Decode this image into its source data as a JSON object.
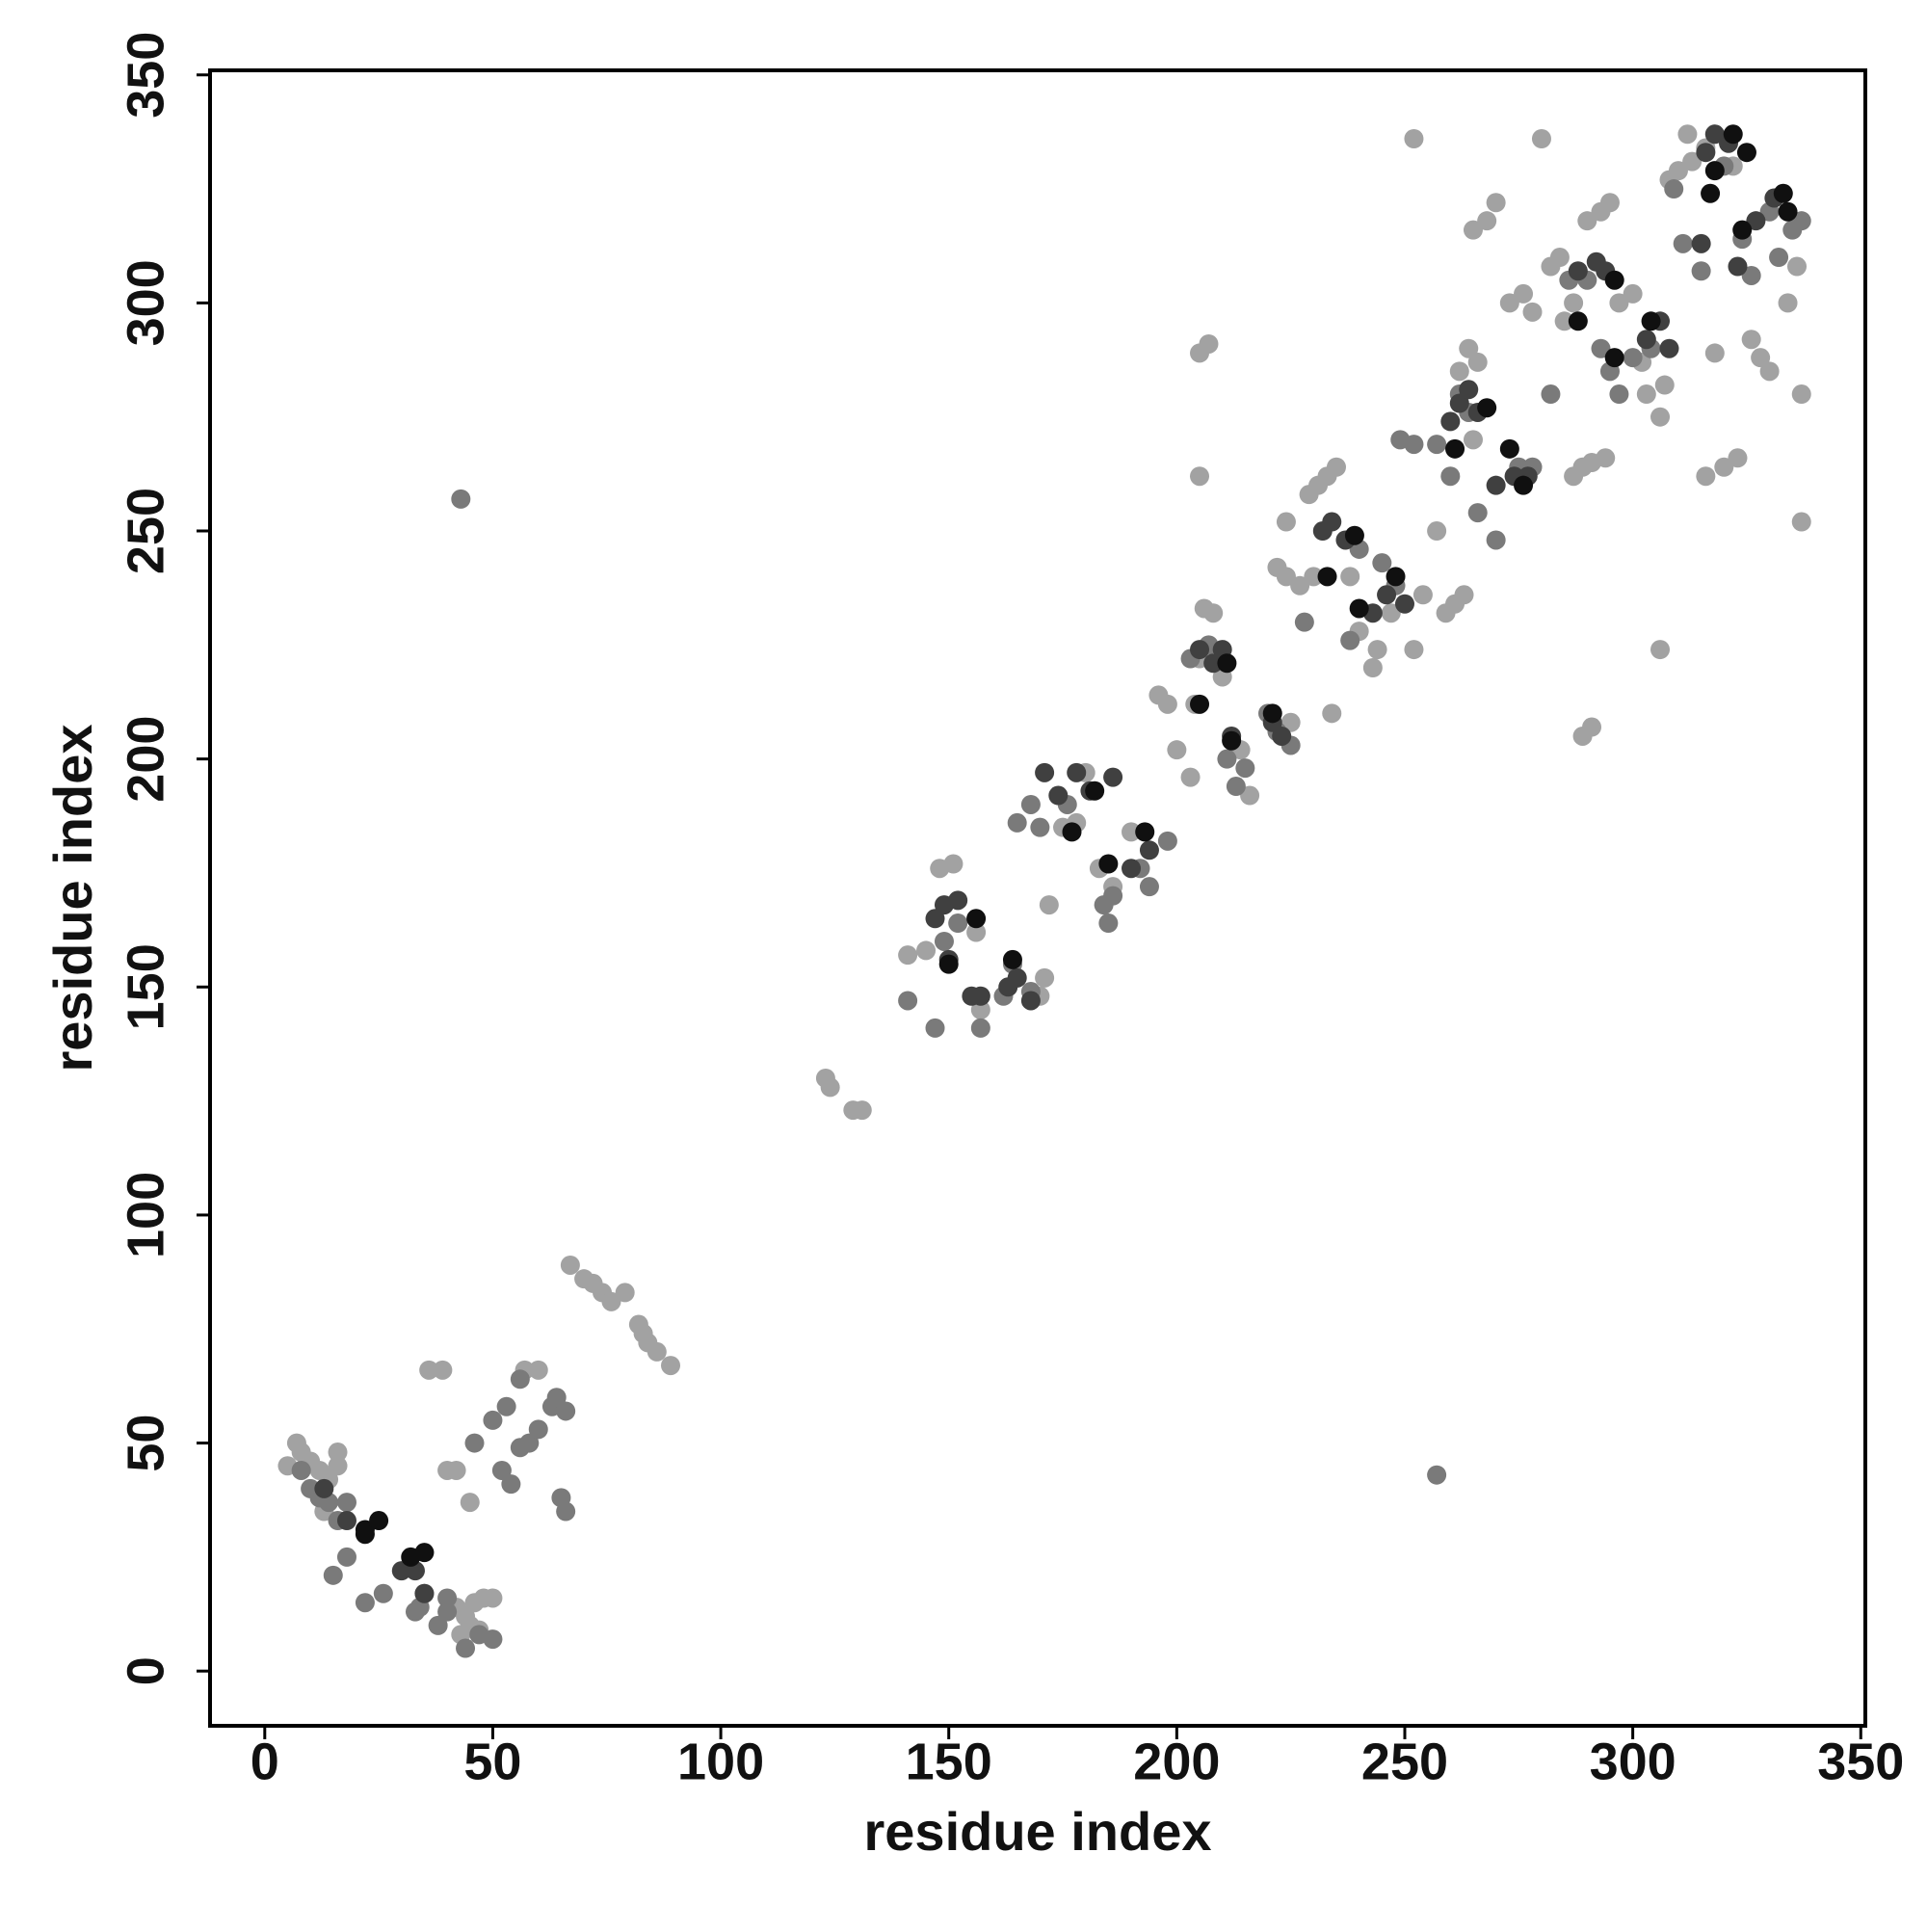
{
  "chart_data": {
    "type": "scatter",
    "x_label": "residue index",
    "y_label": "residue index",
    "xlim": [
      -12,
      351
    ],
    "ylim": [
      -12,
      351
    ],
    "xticks": [
      0,
      50,
      100,
      150,
      200,
      250,
      300,
      350
    ],
    "yticks": [
      0,
      50,
      100,
      150,
      200,
      250,
      300,
      350
    ],
    "series": [
      {
        "color": "#a2a2a2",
        "x": [
          5,
          7,
          8,
          10,
          12,
          14,
          16,
          16,
          13,
          42,
          44,
          46,
          48,
          50,
          45,
          43,
          47,
          40,
          42,
          45,
          36,
          39,
          57,
          60,
          67,
          70,
          72,
          74,
          76,
          79,
          82,
          83,
          84,
          86,
          89,
          123,
          124,
          129,
          131,
          141,
          145,
          148,
          151,
          156,
          157,
          170,
          171,
          175,
          178,
          172,
          180,
          183,
          186,
          190,
          196,
          198,
          200,
          203,
          204,
          205,
          206,
          208,
          210,
          214,
          216,
          205,
          207,
          205,
          222,
          224,
          227,
          230,
          234,
          225,
          224,
          229,
          231,
          233,
          235,
          238,
          240,
          243,
          244,
          247,
          252,
          252,
          254,
          257,
          259,
          261,
          263,
          266,
          262,
          264,
          265,
          268,
          270,
          273,
          276,
          278,
          280,
          282,
          284,
          287,
          289,
          291,
          294,
          289,
          291,
          290,
          293,
          295,
          297,
          300,
          302,
          303,
          306,
          308,
          310,
          313,
          316,
          318,
          322,
          326,
          328,
          330,
          334,
          336,
          337,
          337,
          306,
          316,
          320,
          323,
          307,
          312,
          318,
          285,
          287,
          265
        ],
        "values": [
          45,
          50,
          48,
          46,
          44,
          42,
          48,
          45,
          35,
          14,
          12,
          15,
          16,
          16,
          10,
          8,
          9,
          44,
          44,
          37,
          66,
          66,
          66,
          66,
          89,
          86,
          85,
          83,
          81,
          83,
          76,
          74,
          72,
          70,
          67,
          130,
          128,
          123,
          123,
          157,
          158,
          176,
          177,
          162,
          145,
          148,
          152,
          185,
          186,
          168,
          197,
          176,
          172,
          184,
          214,
          212,
          202,
          196,
          212,
          222,
          233,
          232,
          218,
          202,
          192,
          289,
          291,
          262,
          242,
          240,
          238,
          240,
          210,
          208,
          252,
          258,
          260,
          262,
          264,
          240,
          228,
          220,
          224,
          232,
          224,
          336,
          236,
          250,
          232,
          234,
          236,
          287,
          285,
          290,
          316,
          318,
          322,
          300,
          302,
          298,
          336,
          308,
          310,
          262,
          264,
          265,
          266,
          205,
          207,
          318,
          320,
          322,
          300,
          302,
          287,
          280,
          275,
          327,
          329,
          331,
          334,
          337,
          330,
          292,
          288,
          285,
          300,
          308,
          280,
          252,
          224,
          262,
          264,
          266,
          282,
          337,
          289,
          296,
          300,
          270
        ]
      },
      {
        "color": "#7a7a7a",
        "x": [
          8,
          10,
          12,
          14,
          16,
          18,
          15,
          18,
          22,
          26,
          33,
          35,
          38,
          40,
          44,
          47,
          50,
          46,
          50,
          53,
          56,
          58,
          60,
          52,
          54,
          56,
          63,
          64,
          65,
          66,
          66,
          34,
          40,
          141,
          147,
          149,
          152,
          157,
          162,
          164,
          168,
          165,
          170,
          176,
          184,
          185,
          192,
          194,
          198,
          203,
          207,
          211,
          213,
          215,
          220,
          222,
          225,
          228,
          238,
          240,
          245,
          248,
          249,
          252,
          257,
          260,
          262,
          264,
          266,
          270,
          275,
          278,
          282,
          286,
          290,
          293,
          295,
          297,
          300,
          304,
          309,
          311,
          315,
          320,
          324,
          326,
          330,
          332,
          335,
          337,
          257,
          43,
          168,
          186
        ],
        "values": [
          44,
          40,
          38,
          37,
          33,
          37,
          21,
          25,
          15,
          17,
          13,
          17,
          10,
          13,
          5,
          8,
          7,
          50,
          55,
          58,
          49,
          50,
          53,
          44,
          41,
          64,
          58,
          60,
          38,
          35,
          57,
          14,
          16,
          147,
          141,
          160,
          164,
          141,
          148,
          155,
          149,
          186,
          185,
          190,
          168,
          164,
          176,
          172,
          182,
          222,
          225,
          200,
          194,
          198,
          210,
          206,
          203,
          230,
          226,
          246,
          243,
          238,
          270,
          269,
          269,
          262,
          280,
          276,
          254,
          248,
          264,
          264,
          280,
          305,
          305,
          290,
          285,
          280,
          288,
          290,
          325,
          313,
          307,
          330,
          314,
          306,
          320,
          310,
          316,
          318,
          43,
          257,
          190,
          170
        ]
      },
      {
        "color": "#404040",
        "x": [
          18,
          30,
          33,
          35,
          147,
          149,
          150,
          152,
          155,
          157,
          163,
          165,
          168,
          171,
          174,
          178,
          181,
          186,
          190,
          194,
          205,
          208,
          210,
          212,
          221,
          223,
          232,
          234,
          237,
          243,
          246,
          250,
          260,
          262,
          264,
          266,
          270,
          274,
          277,
          288,
          292,
          294,
          303,
          306,
          308,
          316,
          318,
          321,
          323,
          327,
          331,
          315,
          13
        ],
        "values": [
          33,
          22,
          22,
          17,
          165,
          168,
          156,
          169,
          148,
          148,
          150,
          152,
          147,
          197,
          192,
          197,
          193,
          196,
          176,
          180,
          224,
          221,
          224,
          205,
          208,
          205,
          250,
          252,
          248,
          232,
          236,
          234,
          274,
          278,
          281,
          276,
          260,
          262,
          262,
          307,
          309,
          307,
          292,
          296,
          290,
          333,
          337,
          335,
          308,
          318,
          323,
          313,
          40
        ]
      },
      {
        "color": "#101010",
        "x": [
          22,
          25,
          32,
          156,
          150,
          164,
          177,
          182,
          185,
          193,
          205,
          211,
          212,
          221,
          233,
          239,
          240,
          248,
          261,
          268,
          273,
          276,
          288,
          296,
          296,
          304,
          317,
          318,
          322,
          324,
          325,
          333,
          334,
          22,
          35
        ],
        "values": [
          31,
          33,
          25,
          165,
          155,
          156,
          184,
          193,
          177,
          184,
          212,
          221,
          204,
          210,
          240,
          249,
          233,
          240,
          268,
          277,
          268,
          260,
          296,
          305,
          288,
          296,
          324,
          329,
          337,
          316,
          333,
          324,
          320,
          30,
          26
        ]
      }
    ]
  }
}
